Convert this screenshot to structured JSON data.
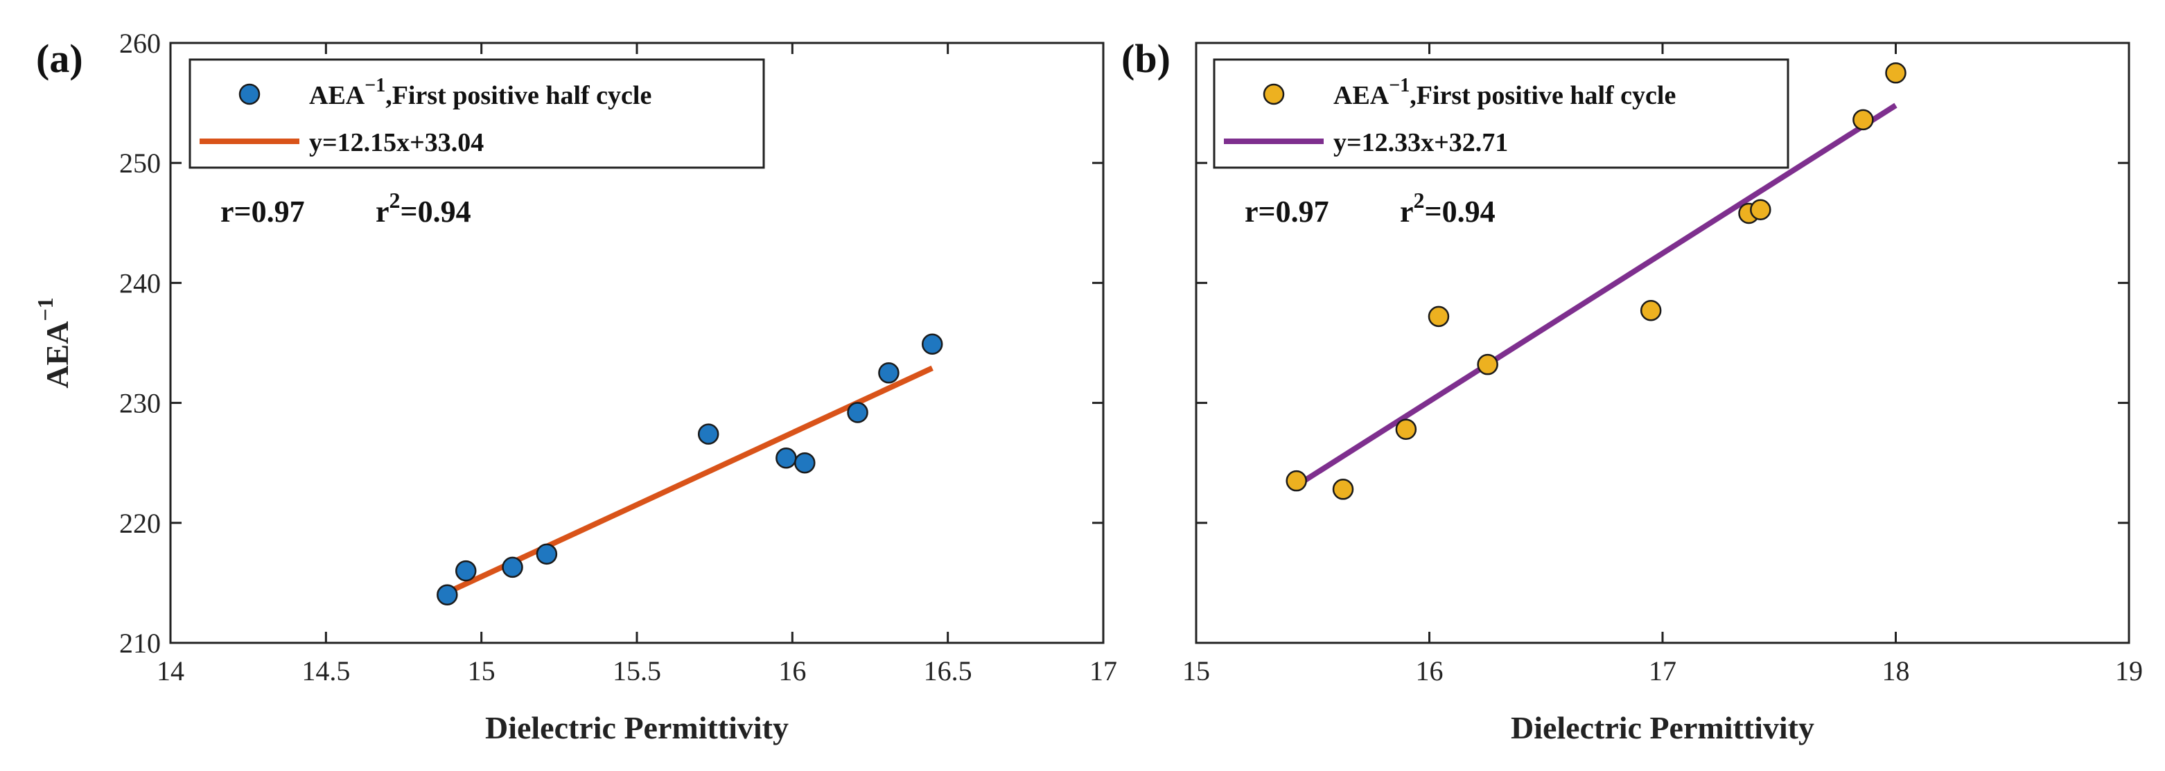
{
  "chart_data": [
    {
      "type": "scatter",
      "panel_label": "(a)",
      "xlabel": "Dielectric Permittivity",
      "ylabel": "AEA",
      "ylabel_sup": "−1",
      "xlim": [
        14,
        17
      ],
      "ylim": [
        210,
        260
      ],
      "xticks": [
        "14",
        "14.5",
        "15",
        "15.5",
        "16",
        "16.5",
        "17"
      ],
      "yticks": [
        "210",
        "220",
        "230",
        "240",
        "250",
        "260"
      ],
      "point_color": "#1f77c0",
      "line_color": "#d95319",
      "points": [
        {
          "x": 14.89,
          "y": 214.0
        },
        {
          "x": 14.95,
          "y": 216.0
        },
        {
          "x": 15.1,
          "y": 216.3
        },
        {
          "x": 15.21,
          "y": 217.4
        },
        {
          "x": 15.73,
          "y": 227.4
        },
        {
          "x": 15.98,
          "y": 225.4
        },
        {
          "x": 16.04,
          "y": 225.0
        },
        {
          "x": 16.21,
          "y": 229.2
        },
        {
          "x": 16.31,
          "y": 232.5
        },
        {
          "x": 16.45,
          "y": 234.9
        }
      ],
      "fit_line": {
        "x": [
          14.89,
          16.45
        ],
        "y": [
          214.2,
          232.9
        ]
      },
      "legend": {
        "position": "top-left",
        "series_prefix": "AEA",
        "series_sup": "−1",
        "series_suffix": ",First positive half cycle",
        "fit_label": "y=12.15x+33.04"
      },
      "stats": {
        "r": "r=0.97",
        "r2_prefix": "r",
        "r2_sup": "2",
        "r2_suffix": "=0.94"
      }
    },
    {
      "type": "scatter",
      "panel_label": "(b)",
      "xlabel": "Dielectric Permittivity",
      "ylabel": "",
      "xlim": [
        15,
        19
      ],
      "ylim": [
        210,
        260
      ],
      "xticks": [
        "15",
        "16",
        "17",
        "18",
        "19"
      ],
      "yticks": [],
      "point_color": "#edb120",
      "line_color": "#7e2f8e",
      "points": [
        {
          "x": 15.43,
          "y": 223.5
        },
        {
          "x": 15.63,
          "y": 222.8
        },
        {
          "x": 15.9,
          "y": 227.8
        },
        {
          "x": 16.04,
          "y": 237.2
        },
        {
          "x": 16.25,
          "y": 233.2
        },
        {
          "x": 16.95,
          "y": 237.7
        },
        {
          "x": 17.37,
          "y": 245.8
        },
        {
          "x": 17.42,
          "y": 246.1
        },
        {
          "x": 17.86,
          "y": 253.6
        },
        {
          "x": 18.0,
          "y": 257.5
        }
      ],
      "fit_line": {
        "x": [
          15.43,
          18.0
        ],
        "y": [
          223.1,
          254.8
        ]
      },
      "legend": {
        "position": "top-left",
        "series_prefix": "AEA",
        "series_sup": "−1",
        "series_suffix": ",First positive half cycle",
        "fit_label": "y=12.33x+32.71"
      },
      "stats": {
        "r": "r=0.97",
        "r2_prefix": "r",
        "r2_sup": "2",
        "r2_suffix": "=0.94"
      }
    }
  ]
}
